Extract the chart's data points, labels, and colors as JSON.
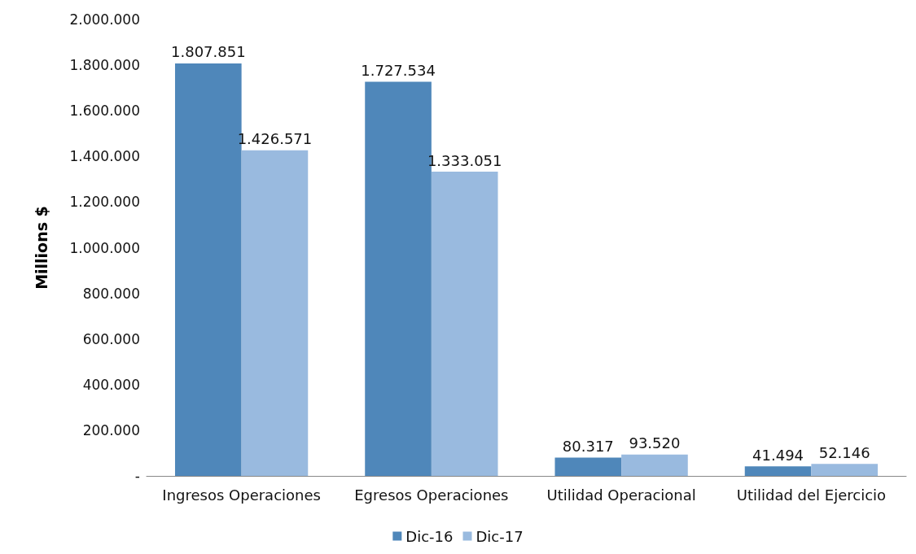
{
  "chart_data": {
    "type": "bar",
    "ylabel": "Millions $",
    "categories": [
      "Ingresos Operaciones",
      "Egresos Operaciones",
      "Utilidad Operacional",
      "Utilidad del Ejercicio"
    ],
    "series": [
      {
        "name": "Dic-16",
        "color": "#4f87ba",
        "values": [
          1807851,
          1727534,
          80317,
          41494
        ],
        "value_labels": [
          "1.807.851",
          "1.727.534",
          "80.317",
          "41.494"
        ]
      },
      {
        "name": "Dic-17",
        "color": "#99badf",
        "values": [
          1426571,
          1333051,
          93520,
          52146
        ],
        "value_labels": [
          "1.426.571",
          "1.333.051",
          "93.520",
          "52.146"
        ]
      }
    ],
    "ylim": [
      0,
      2000000
    ],
    "yticks": [
      {
        "value": 0,
        "label": "-"
      },
      {
        "value": 200000,
        "label": "200.000"
      },
      {
        "value": 400000,
        "label": "400.000"
      },
      {
        "value": 600000,
        "label": "600.000"
      },
      {
        "value": 800000,
        "label": "800.000"
      },
      {
        "value": 1000000,
        "label": "1.000.000"
      },
      {
        "value": 1200000,
        "label": "1.200.000"
      },
      {
        "value": 1400000,
        "label": "1.400.000"
      },
      {
        "value": 1600000,
        "label": "1.600.000"
      },
      {
        "value": 1800000,
        "label": "1.800.000"
      },
      {
        "value": 2000000,
        "label": "2.000.000"
      }
    ],
    "grid": false,
    "legend": "bottom"
  }
}
